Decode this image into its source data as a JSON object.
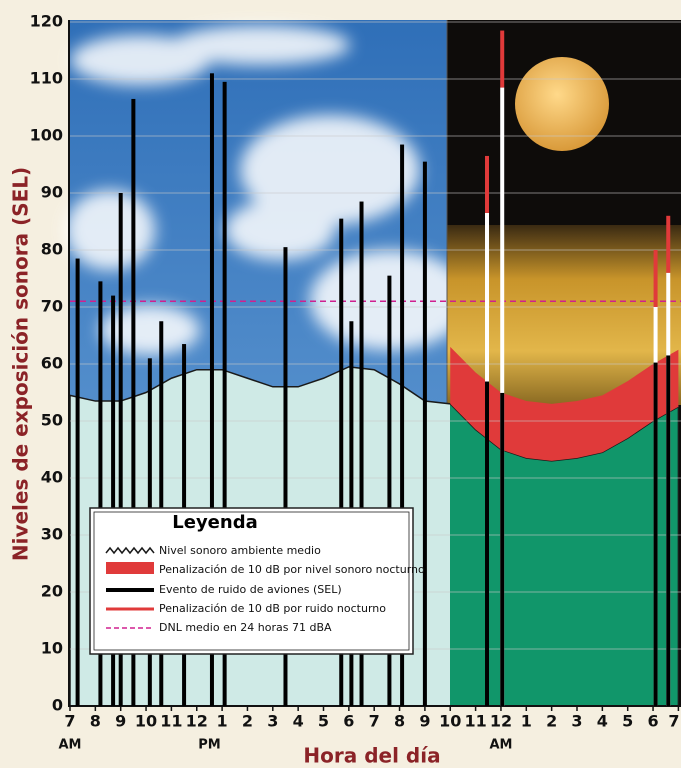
{
  "chart_data": {
    "type": "bar",
    "y_title": "Niveles de exposición sonora (SEL)",
    "x_title": "Hora del día",
    "xlim": [
      7,
      31
    ],
    "ylim": [
      0,
      120
    ],
    "yticks": [
      0,
      10,
      20,
      30,
      40,
      50,
      60,
      70,
      80,
      90,
      100,
      110,
      120
    ],
    "xticks": [
      7,
      8,
      9,
      10,
      11,
      12,
      {
        "value": 13,
        "label": "1"
      },
      {
        "value": 14,
        "label": "2"
      },
      {
        "value": 15,
        "label": "3"
      },
      {
        "value": 16,
        "label": "4"
      },
      {
        "value": 17,
        "label": "5"
      },
      {
        "value": 18,
        "label": "6"
      },
      {
        "value": 19,
        "label": "7"
      },
      {
        "value": 20,
        "label": "8"
      },
      {
        "value": 21,
        "label": "9"
      },
      {
        "value": 22,
        "label": "10"
      },
      {
        "value": 23,
        "label": "11"
      },
      {
        "value": 24,
        "label": "12"
      },
      {
        "value": 25,
        "label": "1"
      },
      {
        "value": 26,
        "label": "2"
      },
      {
        "value": 27,
        "label": "3"
      },
      {
        "value": 28,
        "label": "4"
      },
      {
        "value": 29,
        "label": "5"
      },
      {
        "value": 30,
        "label": "6"
      },
      {
        "value": 31,
        "label": "7"
      }
    ],
    "x_sublabels": [
      {
        "value": 7,
        "label": "AM"
      },
      {
        "value": 12.5,
        "label": "PM"
      },
      {
        "value": 24,
        "label": "AM"
      }
    ],
    "grid": true,
    "legend_title": "Leyenda",
    "ambient": {
      "name": "Nivel sonoro ambiente medio",
      "color": "#1a1a1a",
      "x": [
        7,
        8,
        9,
        10,
        11,
        12,
        13,
        14,
        15,
        16,
        17,
        18,
        19,
        20,
        21,
        22,
        23,
        24,
        25,
        26,
        27,
        28,
        29,
        30,
        31
      ],
      "values": [
        54.5,
        53.5,
        53.5,
        55,
        57.5,
        59,
        59,
        57.5,
        56,
        56,
        57.5,
        59.5,
        59,
        56.5,
        53.5,
        53,
        48.5,
        45,
        43.5,
        43,
        43.5,
        44.5,
        47,
        50,
        52.5
      ]
    },
    "night_penalty": {
      "name": "Penalización de 10 dB por nivel sonoro nocturno",
      "color": "#e03a3a",
      "value": 10,
      "from_x": 22
    },
    "events": {
      "name": "Evento de ruido de aviones (SEL)",
      "color": "#000000",
      "x": [
        7.3,
        8.2,
        8.7,
        9.0,
        9.5,
        10.15,
        10.6,
        11.5,
        12.6,
        13.1,
        15.5,
        17.7,
        18.1,
        18.5,
        19.6,
        20.1,
        21.0,
        23.45,
        24.05,
        30.1,
        30.6
      ],
      "values": [
        78.5,
        74.5,
        72,
        90,
        106.5,
        61,
        67.5,
        63.5,
        111,
        109.5,
        80.5,
        85.5,
        67.5,
        88.5,
        75.5,
        98.5,
        95.5,
        86.5,
        108.5,
        70,
        76
      ]
    },
    "event_penalty": {
      "name": "Penalización de 10 dB por ruido nocturno",
      "color": "#e03a3a",
      "value": 10,
      "from_x": 22
    },
    "dnl": {
      "name": "DNL medio en 24 horas 71 dBA",
      "color": "#d0208f",
      "value": 71
    }
  }
}
